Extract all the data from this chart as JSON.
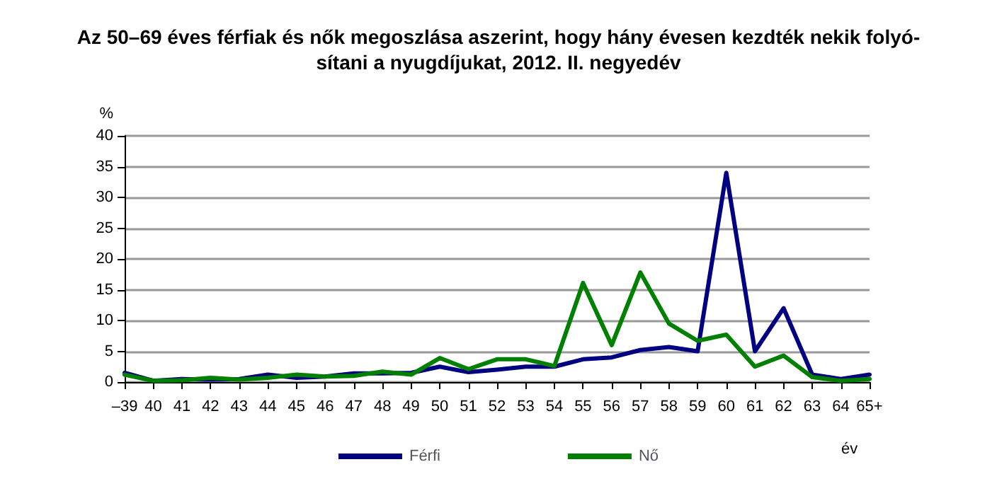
{
  "chart_data": {
    "type": "line",
    "title": "Az 50–69 éves férfiak és nők megoszlása aszerint, hogy hány évesen kezdték nekik folyó-\nsítani a nyugdíjukat, 2012. II. negyedév",
    "xlabel": "év",
    "ylabel": "%",
    "categories": [
      "–39",
      "40",
      "41",
      "42",
      "43",
      "44",
      "45",
      "46",
      "47",
      "48",
      "49",
      "50",
      "51",
      "52",
      "53",
      "54",
      "55",
      "56",
      "57",
      "58",
      "59",
      "60",
      "61",
      "62",
      "63",
      "64",
      "65+"
    ],
    "series": [
      {
        "name": "Férfi",
        "color": "#000080",
        "values": [
          1.5,
          0.2,
          0.5,
          0.4,
          0.5,
          1.2,
          0.7,
          0.9,
          1.4,
          1.4,
          1.5,
          2.5,
          1.6,
          2.0,
          2.5,
          2.5,
          3.7,
          4.0,
          5.2,
          5.7,
          5.0,
          34,
          5.0,
          12,
          1.2,
          0.5,
          1.2
        ]
      },
      {
        "name": "Nő",
        "color": "#008000",
        "values": [
          1.2,
          0.2,
          0.3,
          0.7,
          0.4,
          0.7,
          1.2,
          0.9,
          1.0,
          1.7,
          1.2,
          3.9,
          2.1,
          3.7,
          3.7,
          2.6,
          16.1,
          6.0,
          17.8,
          9.5,
          6.7,
          7.7,
          2.5,
          4.3,
          0.8,
          0.2,
          0.5
        ]
      }
    ],
    "ylim": [
      0,
      40
    ],
    "yticks": [
      0,
      5,
      10,
      15,
      20,
      25,
      30,
      35,
      40
    ],
    "grid": "y",
    "legend": "bottom",
    "marker": "none",
    "line_style": "solid"
  }
}
